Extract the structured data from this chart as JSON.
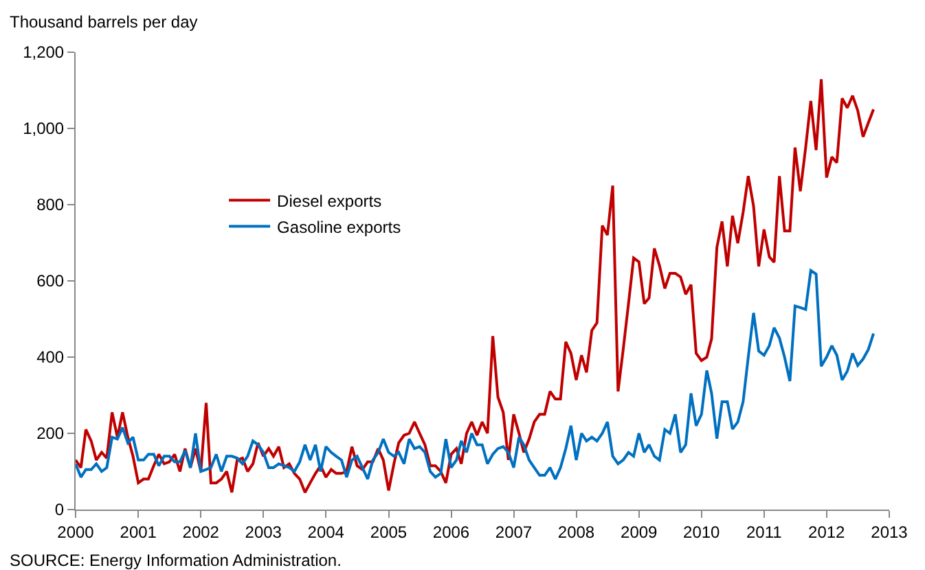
{
  "chart_data": {
    "type": "line",
    "ylabel": "Thousand barrels per day",
    "annotations": [
      "SOURCE: Energy Information Administration."
    ],
    "x": [
      "2000-01",
      "2000-02",
      "2000-03",
      "2000-04",
      "2000-05",
      "2000-06",
      "2000-07",
      "2000-08",
      "2000-09",
      "2000-10",
      "2000-11",
      "2000-12",
      "2001-01",
      "2001-02",
      "2001-03",
      "2001-04",
      "2001-05",
      "2001-06",
      "2001-07",
      "2001-08",
      "2001-09",
      "2001-10",
      "2001-11",
      "2001-12",
      "2002-01",
      "2002-02",
      "2002-03",
      "2002-04",
      "2002-05",
      "2002-06",
      "2002-07",
      "2002-08",
      "2002-09",
      "2002-10",
      "2002-11",
      "2002-12",
      "2003-01",
      "2003-02",
      "2003-03",
      "2003-04",
      "2003-05",
      "2003-06",
      "2003-07",
      "2003-08",
      "2003-09",
      "2003-10",
      "2003-11",
      "2003-12",
      "2004-01",
      "2004-02",
      "2004-03",
      "2004-04",
      "2004-05",
      "2004-06",
      "2004-07",
      "2004-08",
      "2004-09",
      "2004-10",
      "2004-11",
      "2004-12",
      "2005-01",
      "2005-02",
      "2005-03",
      "2005-04",
      "2005-05",
      "2005-06",
      "2005-07",
      "2005-08",
      "2005-09",
      "2005-10",
      "2005-11",
      "2005-12",
      "2006-01",
      "2006-02",
      "2006-03",
      "2006-04",
      "2006-05",
      "2006-06",
      "2006-07",
      "2006-08",
      "2006-09",
      "2006-10",
      "2006-11",
      "2006-12",
      "2007-01",
      "2007-02",
      "2007-03",
      "2007-04",
      "2007-05",
      "2007-06",
      "2007-07",
      "2007-08",
      "2007-09",
      "2007-10",
      "2007-11",
      "2007-12",
      "2008-01",
      "2008-02",
      "2008-03",
      "2008-04",
      "2008-05",
      "2008-06",
      "2008-07",
      "2008-08",
      "2008-09",
      "2008-10",
      "2008-11",
      "2008-12",
      "2009-01",
      "2009-02",
      "2009-03",
      "2009-04",
      "2009-05",
      "2009-06",
      "2009-07",
      "2009-08",
      "2009-09",
      "2009-10",
      "2009-11",
      "2009-12",
      "2010-01",
      "2010-02",
      "2010-03",
      "2010-04",
      "2010-05",
      "2010-06",
      "2010-07",
      "2010-08",
      "2010-09",
      "2010-10",
      "2010-11",
      "2010-12",
      "2011-01",
      "2011-02",
      "2011-03",
      "2011-04",
      "2011-05",
      "2011-06",
      "2011-07",
      "2011-08",
      "2011-09",
      "2011-10",
      "2011-11",
      "2011-12",
      "2012-01",
      "2012-02",
      "2012-03",
      "2012-04",
      "2012-05",
      "2012-06",
      "2012-07",
      "2012-08",
      "2012-09",
      "2012-10"
    ],
    "series": [
      {
        "name": "Diesel exports",
        "color": "#c00000",
        "values": [
          130,
          110,
          210,
          180,
          130,
          150,
          135,
          255,
          190,
          255,
          190,
          140,
          70,
          80,
          80,
          115,
          145,
          120,
          125,
          145,
          100,
          160,
          110,
          160,
          100,
          280,
          70,
          70,
          80,
          100,
          45,
          130,
          135,
          100,
          120,
          175,
          140,
          160,
          140,
          165,
          110,
          120,
          95,
          80,
          45,
          70,
          95,
          115,
          85,
          105,
          95,
          95,
          100,
          165,
          115,
          105,
          125,
          125,
          160,
          130,
          50,
          120,
          175,
          195,
          200,
          230,
          200,
          170,
          115,
          115,
          100,
          70,
          145,
          160,
          120,
          200,
          230,
          195,
          230,
          200,
          455,
          295,
          255,
          130,
          250,
          200,
          150,
          185,
          230,
          250,
          250,
          310,
          290,
          290,
          440,
          410,
          340,
          405,
          360,
          470,
          490,
          745,
          720,
          850,
          310,
          420,
          540,
          660,
          650,
          540,
          555,
          685,
          640,
          580,
          620,
          620,
          610,
          565,
          590,
          410,
          391,
          400,
          448,
          688,
          756,
          638,
          771,
          699,
          780,
          875,
          796,
          638,
          735,
          663,
          649,
          875,
          731,
          731,
          950,
          835,
          950,
          1072,
          943,
          1129,
          871,
          925,
          910,
          1079,
          1054,
          1086,
          1047,
          978,
          1015,
          1050
        ]
      },
      {
        "name": "Gasoline exports",
        "color": "#0070c0",
        "values": [
          120,
          85,
          105,
          105,
          120,
          100,
          110,
          190,
          185,
          215,
          175,
          190,
          130,
          130,
          145,
          145,
          115,
          140,
          140,
          125,
          125,
          155,
          110,
          200,
          100,
          105,
          110,
          145,
          100,
          140,
          140,
          135,
          120,
          140,
          180,
          170,
          150,
          110,
          110,
          120,
          115,
          110,
          100,
          125,
          170,
          130,
          170,
          100,
          165,
          150,
          140,
          130,
          85,
          130,
          140,
          110,
          80,
          130,
          150,
          185,
          150,
          140,
          150,
          120,
          185,
          160,
          165,
          150,
          100,
          85,
          95,
          185,
          110,
          130,
          180,
          150,
          200,
          170,
          170,
          120,
          145,
          160,
          165,
          150,
          110,
          190,
          170,
          130,
          110,
          90,
          90,
          110,
          80,
          110,
          160,
          220,
          130,
          200,
          180,
          190,
          180,
          200,
          230,
          140,
          120,
          130,
          150,
          140,
          200,
          150,
          170,
          140,
          130,
          210,
          200,
          250,
          150,
          170,
          305,
          220,
          250,
          365,
          305,
          186,
          283,
          283,
          211,
          230,
          283,
          400,
          516,
          416,
          405,
          430,
          477,
          450,
          400,
          337,
          534,
          530,
          525,
          627,
          618,
          376,
          400,
          430,
          405,
          340,
          363,
          410,
          378,
          395,
          420,
          462
        ]
      }
    ],
    "xlim": [
      "2000",
      "2013"
    ],
    "xticks": [
      "2000",
      "2001",
      "2002",
      "2003",
      "2004",
      "2005",
      "2006",
      "2007",
      "2008",
      "2009",
      "2010",
      "2011",
      "2012",
      "2013"
    ],
    "ylim": [
      0,
      1200
    ],
    "yticks": [
      0,
      200,
      400,
      600,
      800,
      {
        "value": 1000,
        "label": "1,000"
      },
      {
        "value": 1200,
        "label": "1,200"
      }
    ],
    "legend": "top left",
    "marker": "none",
    "line_style": "solid"
  }
}
